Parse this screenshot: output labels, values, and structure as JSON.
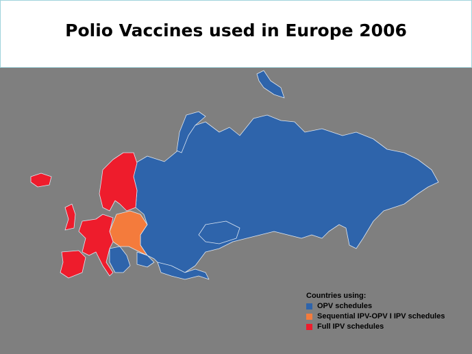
{
  "title": "Polio Vaccines used in Europe 2006",
  "legend": {
    "title": "Countries using:",
    "items": [
      {
        "label": "OPV schedules",
        "color": "#2e64ab"
      },
      {
        "label": "Sequential IPV-OPV I IPV schedules",
        "color": "#f47b3c"
      },
      {
        "label": "Full IPV schedules",
        "color": "#ee1c2c"
      }
    ]
  }
}
